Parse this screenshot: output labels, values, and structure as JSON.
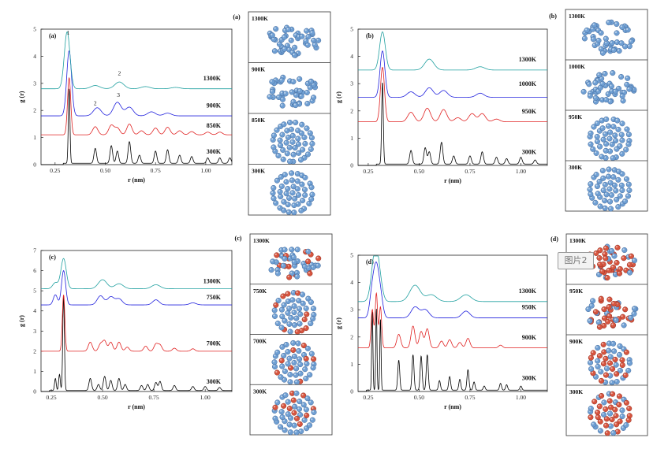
{
  "chart_data": [
    {
      "id": "a",
      "type": "line",
      "panel_label": "(a)",
      "xlabel": "r (nm)",
      "ylabel": "g (r)",
      "xlim": [
        0.18,
        1.13
      ],
      "ylim": [
        0,
        5
      ],
      "xticks": [
        0.25,
        0.5,
        0.75,
        1.0
      ],
      "xtick_labels": [
        "0.25",
        "0.50",
        "0.75",
        "1.00"
      ],
      "yticks": [
        0,
        1,
        2,
        3,
        4,
        5
      ],
      "series": [
        {
          "name": "300K",
          "color": "#000000",
          "offset": 0,
          "base": 0.05,
          "width": 0.004,
          "label_y": 0.5,
          "peaks": [
            [
              0.32,
              2.75
            ],
            [
              0.45,
              0.55
            ],
            [
              0.53,
              0.65
            ],
            [
              0.56,
              0.45
            ],
            [
              0.62,
              0.8
            ],
            [
              0.67,
              0.3
            ],
            [
              0.75,
              0.45
            ],
            [
              0.81,
              0.5
            ],
            [
              0.87,
              0.3
            ],
            [
              0.93,
              0.25
            ],
            [
              1.01,
              0.2
            ],
            [
              1.07,
              0.2
            ],
            [
              1.12,
              0.2
            ]
          ]
        },
        {
          "name": "850K",
          "color": "#e02020",
          "offset": 1.05,
          "base": 0.05,
          "width": 0.008,
          "label_y": 1.45,
          "peaks": [
            [
              0.32,
              2.1
            ],
            [
              0.45,
              0.3
            ],
            [
              0.53,
              0.35
            ],
            [
              0.56,
              0.25
            ],
            [
              0.62,
              0.4
            ],
            [
              0.68,
              0.15
            ],
            [
              0.75,
              0.25
            ],
            [
              0.81,
              0.28
            ],
            [
              0.87,
              0.15
            ],
            [
              0.93,
              0.12
            ],
            [
              1.01,
              0.1
            ],
            [
              1.07,
              0.1
            ]
          ]
        },
        {
          "name": "900K",
          "color": "#2020dd",
          "offset": 1.8,
          "base": 0.0,
          "width": 0.012,
          "label_y": 2.2,
          "peaks": [
            [
              0.32,
              2.4
            ],
            [
              0.46,
              0.3
            ],
            [
              0.56,
              0.5
            ],
            [
              0.62,
              0.32
            ],
            [
              0.73,
              0.15
            ],
            [
              0.81,
              0.1
            ]
          ]
        },
        {
          "name": "1300K",
          "color": "#20a0a0",
          "offset": 2.8,
          "base": 0.0,
          "width": 0.014,
          "label_y": 3.2,
          "peaks": [
            [
              0.31,
              2.1
            ],
            [
              0.45,
              0.12
            ],
            [
              0.57,
              0.25
            ],
            [
              0.7,
              0.08
            ],
            [
              0.85,
              0.05
            ]
          ]
        }
      ],
      "annotations": [
        {
          "text": "1",
          "x": 0.315,
          "y": 4.8
        },
        {
          "text": "2",
          "x": 0.57,
          "y": 3.3
        },
        {
          "text": "2",
          "x": 0.45,
          "y": 2.2
        },
        {
          "text": "3",
          "x": 0.565,
          "y": 2.5
        }
      ]
    },
    {
      "id": "b",
      "type": "line",
      "panel_label": "(b)",
      "xlabel": "r (nm)",
      "ylabel": "g (r)",
      "xlim": [
        0.2,
        1.13
      ],
      "ylim": [
        0,
        5
      ],
      "xticks": [
        0.25,
        0.5,
        0.75,
        1.0
      ],
      "xtick_labels": [
        "0.25",
        "0.50",
        "0.75",
        "1.00"
      ],
      "yticks": [
        0,
        1,
        2,
        3,
        4,
        5
      ],
      "series": [
        {
          "name": "300K",
          "color": "#000000",
          "offset": 0,
          "base": 0.05,
          "width": 0.004,
          "label_y": 0.5,
          "peaks": [
            [
              0.32,
              3.0
            ],
            [
              0.46,
              0.5
            ],
            [
              0.53,
              0.6
            ],
            [
              0.55,
              0.45
            ],
            [
              0.61,
              0.8
            ],
            [
              0.67,
              0.3
            ],
            [
              0.75,
              0.3
            ],
            [
              0.81,
              0.45
            ],
            [
              0.88,
              0.25
            ],
            [
              0.93,
              0.2
            ],
            [
              1.0,
              0.25
            ],
            [
              1.07,
              0.15
            ]
          ]
        },
        {
          "name": "950K",
          "color": "#e02020",
          "offset": 1.6,
          "base": 0.0,
          "width": 0.01,
          "label_y": 2.0,
          "peaks": [
            [
              0.32,
              2.0
            ],
            [
              0.46,
              0.35
            ],
            [
              0.54,
              0.5
            ],
            [
              0.62,
              0.45
            ],
            [
              0.69,
              0.15
            ],
            [
              0.76,
              0.3
            ],
            [
              0.81,
              0.3
            ],
            [
              0.88,
              0.1
            ]
          ]
        },
        {
          "name": "1000K",
          "color": "#2020dd",
          "offset": 2.5,
          "base": 0.0,
          "width": 0.012,
          "label_y": 3.0,
          "peaks": [
            [
              0.32,
              1.7
            ],
            [
              0.46,
              0.2
            ],
            [
              0.55,
              0.35
            ],
            [
              0.62,
              0.25
            ],
            [
              0.8,
              0.15
            ]
          ]
        },
        {
          "name": "1300K",
          "color": "#20a0a0",
          "offset": 3.5,
          "base": 0.0,
          "width": 0.014,
          "label_y": 3.9,
          "peaks": [
            [
              0.32,
              1.4
            ],
            [
              0.55,
              0.4
            ],
            [
              0.8,
              0.12
            ]
          ]
        }
      ],
      "annotations": []
    },
    {
      "id": "c",
      "type": "line",
      "panel_label": "(c)",
      "xlabel": "r (nm)",
      "ylabel": "g (r)",
      "xlim": [
        0.2,
        1.13
      ],
      "ylim": [
        0,
        7
      ],
      "xticks": [
        0.25,
        0.5,
        0.75,
        1.0
      ],
      "xtick_labels": [
        "0.25",
        "0.50",
        "0.75",
        "1.00"
      ],
      "yticks": [
        0,
        1,
        2,
        3,
        4,
        5,
        6,
        7
      ],
      "series": [
        {
          "name": "300K",
          "color": "#000000",
          "offset": 0,
          "base": 0.05,
          "width": 0.004,
          "label_y": 0.5,
          "peaks": [
            [
              0.27,
              0.6
            ],
            [
              0.29,
              0.8
            ],
            [
              0.31,
              4.7
            ],
            [
              0.44,
              0.6
            ],
            [
              0.48,
              0.3
            ],
            [
              0.51,
              0.7
            ],
            [
              0.54,
              0.5
            ],
            [
              0.58,
              0.6
            ],
            [
              0.61,
              0.3
            ],
            [
              0.69,
              0.25
            ],
            [
              0.72,
              0.3
            ],
            [
              0.76,
              0.4
            ],
            [
              0.78,
              0.45
            ],
            [
              0.85,
              0.25
            ],
            [
              0.94,
              0.2
            ],
            [
              1.0,
              0.2
            ],
            [
              1.07,
              0.15
            ]
          ]
        },
        {
          "name": "700K",
          "color": "#e02020",
          "offset": 2.0,
          "base": 0.0,
          "width": 0.006,
          "label_y": 2.4,
          "peaks": [
            [
              0.31,
              2.8
            ],
            [
              0.44,
              0.45
            ],
            [
              0.49,
              0.35
            ],
            [
              0.51,
              0.5
            ],
            [
              0.54,
              0.45
            ],
            [
              0.58,
              0.45
            ],
            [
              0.62,
              0.2
            ],
            [
              0.71,
              0.25
            ],
            [
              0.76,
              0.35
            ],
            [
              0.78,
              0.3
            ],
            [
              0.85,
              0.15
            ],
            [
              0.94,
              0.12
            ]
          ]
        },
        {
          "name": "750K",
          "color": "#2020dd",
          "offset": 4.3,
          "base": 0.0,
          "width": 0.01,
          "label_y": 4.7,
          "peaks": [
            [
              0.27,
              0.5
            ],
            [
              0.31,
              1.7
            ],
            [
              0.49,
              0.45
            ],
            [
              0.54,
              0.4
            ],
            [
              0.58,
              0.3
            ],
            [
              0.76,
              0.25
            ],
            [
              0.94,
              0.1
            ]
          ]
        },
        {
          "name": "1300K",
          "color": "#20a0a0",
          "offset": 5.1,
          "base": 0.0,
          "width": 0.013,
          "label_y": 5.5,
          "peaks": [
            [
              0.27,
              0.3
            ],
            [
              0.31,
              1.5
            ],
            [
              0.5,
              0.45
            ],
            [
              0.58,
              0.25
            ],
            [
              0.76,
              0.2
            ]
          ]
        }
      ],
      "annotations": []
    },
    {
      "id": "d",
      "type": "line",
      "panel_label": "(d)",
      "xlabel": "r (nm)",
      "ylabel": "g (r)",
      "xlim": [
        0.2,
        1.13
      ],
      "ylim": [
        0,
        5
      ],
      "xticks": [
        0.25,
        0.5,
        0.75,
        1.0
      ],
      "xtick_labels": [
        "0.25",
        "0.50",
        "0.75",
        "1.00"
      ],
      "yticks": [
        0,
        1,
        2,
        3,
        4,
        5
      ],
      "series": [
        {
          "name": "300K",
          "color": "#000000",
          "offset": 0,
          "base": 0.05,
          "width": 0.003,
          "label_y": 0.5,
          "peaks": [
            [
              0.27,
              2.9
            ],
            [
              0.29,
              3.0
            ],
            [
              0.31,
              2.6
            ],
            [
              0.4,
              1.1
            ],
            [
              0.47,
              1.3
            ],
            [
              0.51,
              1.25
            ],
            [
              0.54,
              1.3
            ],
            [
              0.6,
              0.35
            ],
            [
              0.65,
              0.5
            ],
            [
              0.7,
              0.4
            ],
            [
              0.74,
              0.75
            ],
            [
              0.77,
              0.3
            ],
            [
              0.82,
              0.15
            ],
            [
              0.9,
              0.25
            ],
            [
              0.93,
              0.2
            ],
            [
              1.0,
              0.15
            ]
          ]
        },
        {
          "name": "900K",
          "color": "#e02020",
          "offset": 1.6,
          "base": 0.0,
          "width": 0.006,
          "label_y": 2.0,
          "peaks": [
            [
              0.27,
              1.4
            ],
            [
              0.29,
              2.0
            ],
            [
              0.31,
              1.5
            ],
            [
              0.4,
              0.5
            ],
            [
              0.47,
              0.8
            ],
            [
              0.51,
              0.6
            ],
            [
              0.54,
              0.7
            ],
            [
              0.61,
              0.25
            ],
            [
              0.65,
              0.3
            ],
            [
              0.7,
              0.2
            ],
            [
              0.74,
              0.35
            ],
            [
              0.9,
              0.1
            ]
          ]
        },
        {
          "name": "950K",
          "color": "#2020dd",
          "offset": 2.7,
          "base": 0.0,
          "width": 0.012,
          "label_y": 3.1,
          "peaks": [
            [
              0.27,
              1.0
            ],
            [
              0.29,
              1.6
            ],
            [
              0.31,
              0.8
            ],
            [
              0.48,
              0.4
            ],
            [
              0.53,
              0.3
            ],
            [
              0.73,
              0.25
            ]
          ]
        },
        {
          "name": "1300K",
          "color": "#20a0a0",
          "offset": 3.3,
          "base": 0.0,
          "width": 0.016,
          "label_y": 3.7,
          "peaks": [
            [
              0.28,
              1.4
            ],
            [
              0.3,
              1.0
            ],
            [
              0.48,
              0.6
            ],
            [
              0.56,
              0.25
            ],
            [
              0.73,
              0.25
            ]
          ]
        }
      ],
      "annotations": []
    }
  ],
  "snapshots": [
    {
      "id": "a",
      "panel_label": "(a)",
      "frames": [
        {
          "label": "1300K",
          "shape": "blob",
          "reds": 0
        },
        {
          "label": "900K",
          "shape": "blob",
          "reds": 0
        },
        {
          "label": "850K",
          "shape": "rings",
          "reds": 0
        },
        {
          "label": "300K",
          "shape": "rings",
          "reds": 0
        }
      ]
    },
    {
      "id": "b",
      "panel_label": "(b)",
      "frames": [
        {
          "label": "1300K",
          "shape": "blob",
          "reds": 0
        },
        {
          "label": "1000K",
          "shape": "blob",
          "reds": 0
        },
        {
          "label": "950K",
          "shape": "rings",
          "reds": 0
        },
        {
          "label": "300K",
          "shape": "rings",
          "reds": 0
        }
      ]
    },
    {
      "id": "c",
      "panel_label": "(c)",
      "frames": [
        {
          "label": "1300K",
          "shape": "blob",
          "reds": 0.3
        },
        {
          "label": "750K",
          "shape": "rings",
          "reds": 0.3
        },
        {
          "label": "700K",
          "shape": "rings",
          "reds": 0.25
        },
        {
          "label": "300K",
          "shape": "rings",
          "reds": 0.25
        }
      ]
    },
    {
      "id": "d",
      "panel_label": "(d)",
      "frames": [
        {
          "label": "1300K",
          "shape": "blob",
          "reds": 0.7
        },
        {
          "label": "950K",
          "shape": "blob",
          "reds": 0.7
        },
        {
          "label": "900K",
          "shape": "rings",
          "reds": 0.6
        },
        {
          "label": "300K",
          "shape": "rings",
          "reds": 0.6
        }
      ]
    }
  ],
  "watermark": "图片2",
  "colors": {
    "atom_blue": "#6f9fd3",
    "atom_red": "#d7553f",
    "frame": "#333333"
  }
}
